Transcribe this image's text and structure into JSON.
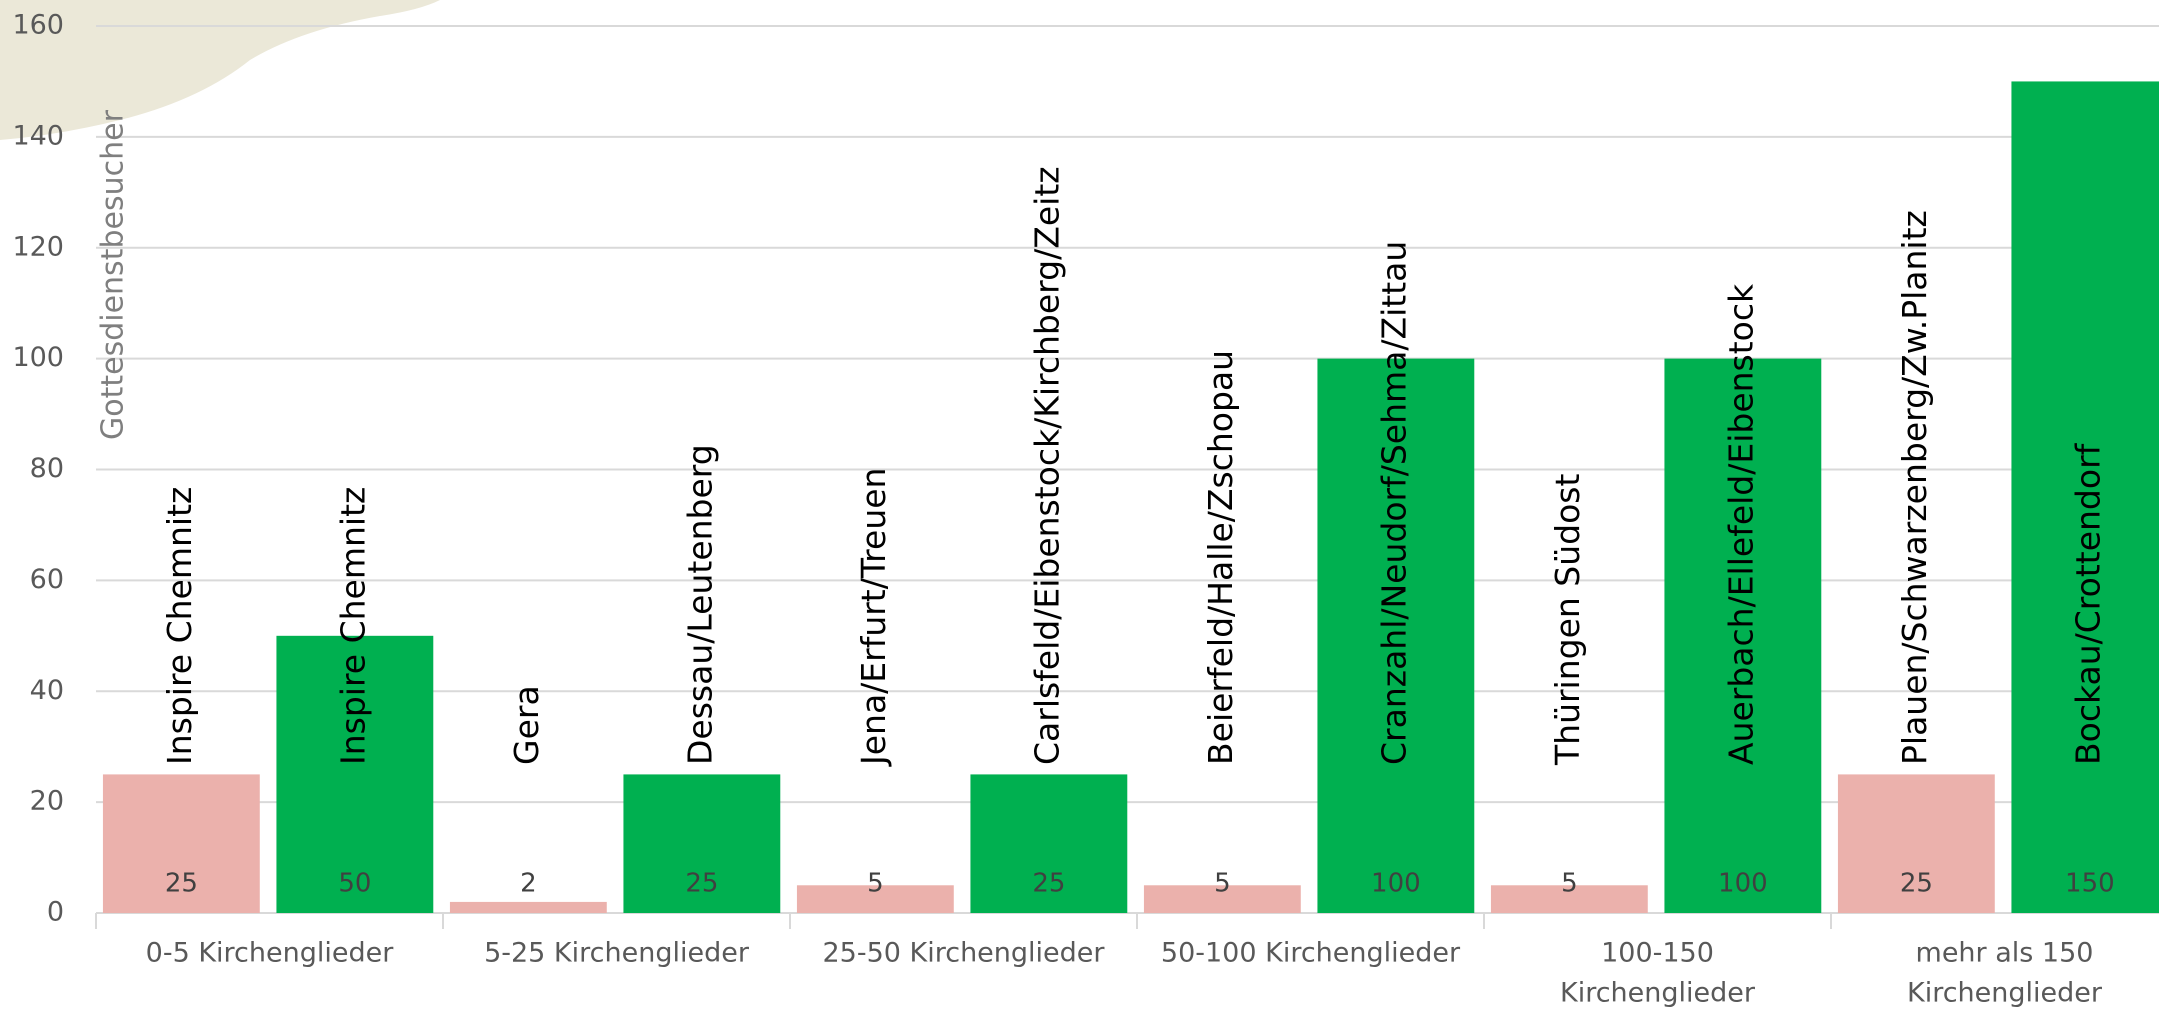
{
  "chart_data": {
    "type": "bar",
    "y_axis_label": "Gottesdienstbesucher",
    "categories": [
      [
        "0-5 Kirchenglieder"
      ],
      [
        "5-25 Kirchenglieder"
      ],
      [
        "25-50 Kirchenglieder"
      ],
      [
        "50-100 Kirchenglieder"
      ],
      [
        "100-150",
        "Kirchenglieder"
      ],
      [
        "mehr als 150",
        "Kirchenglieder"
      ]
    ],
    "series": [
      {
        "color": "#ebb1ac",
        "values": [
          25,
          2,
          5,
          5,
          5,
          25
        ],
        "labels": [
          "Inspire Chemnitz",
          "Gera",
          "Jena/Erfurt/Treuen",
          "Beierfeld/Halle/Zschopau",
          "Thüringen Südost",
          "Plauen/Schwarzenberg/Zw.Planitz"
        ]
      },
      {
        "color": "#00b050",
        "values": [
          50,
          25,
          25,
          100,
          100,
          150
        ],
        "labels": [
          "Inspire Chemnitz",
          "Dessau/Leutenberg",
          "Carlsfeld/Eibenstock/Kirchberg/Zeitz",
          "Cranzahl/Neudorf/Sehma/Zittau",
          "Auerbach/Ellefeld/Eibenstock",
          "Bockau/Crottendorf"
        ]
      }
    ],
    "ylim": [
      0,
      160
    ],
    "yticks": [
      0,
      20,
      40,
      60,
      80,
      100,
      120,
      140,
      160
    ],
    "grid": true
  }
}
